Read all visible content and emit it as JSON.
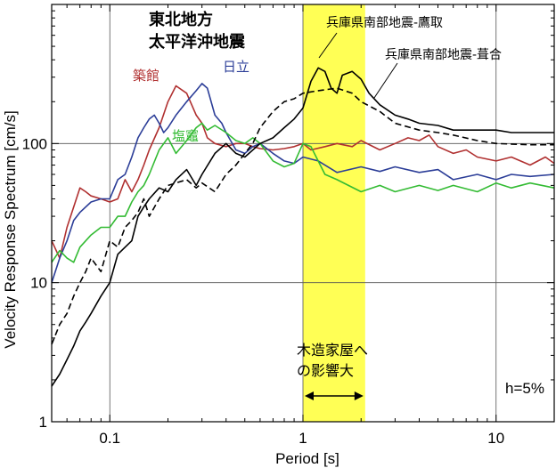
{
  "chart_data": {
    "type": "line",
    "xlabel": "Period [s]",
    "ylabel": "Velocity Response Spectrum [cm/s]",
    "xscale": "log",
    "yscale": "log",
    "xlim": [
      0.05,
      20
    ],
    "ylim": [
      1,
      1000
    ],
    "grid": true,
    "x_ticks": [
      {
        "value": 0.1,
        "label": "0.1"
      },
      {
        "value": 1,
        "label": "1"
      },
      {
        "value": 10,
        "label": "10"
      }
    ],
    "y_ticks": [
      {
        "value": 1,
        "label": "1"
      },
      {
        "value": 10,
        "label": "10"
      },
      {
        "value": 100,
        "label": "100"
      }
    ],
    "title_lines": [
      "東北地方",
      "太平洋沖地震"
    ],
    "damping_label": "h=5%",
    "highlight": {
      "x_range": [
        1,
        2.1
      ],
      "color": "#ffff55",
      "label_lines": [
        "木造家屋へ",
        "の影響大"
      ]
    },
    "series": [
      {
        "name": "築館",
        "color": "#b03030",
        "dash": "solid",
        "x": [
          0.05,
          0.055,
          0.06,
          0.065,
          0.07,
          0.075,
          0.08,
          0.09,
          0.1,
          0.11,
          0.12,
          0.13,
          0.14,
          0.15,
          0.16,
          0.18,
          0.2,
          0.22,
          0.25,
          0.28,
          0.3,
          0.32,
          0.35,
          0.4,
          0.45,
          0.5,
          0.55,
          0.6,
          0.7,
          0.8,
          0.9,
          1.0,
          1.1,
          1.3,
          1.5,
          1.8,
          2.0,
          2.5,
          3.0,
          3.5,
          4.0,
          4.5,
          5.0,
          6.0,
          7.0,
          8.0,
          10.0,
          12.0,
          15.0,
          18.0,
          20.0
        ],
        "y": [
          20,
          15,
          25,
          35,
          48,
          45,
          42,
          40,
          38,
          40,
          55,
          45,
          55,
          70,
          90,
          130,
          200,
          260,
          230,
          160,
          140,
          110,
          100,
          95,
          100,
          100,
          95,
          92,
          90,
          92,
          95,
          100,
          90,
          95,
          100,
          95,
          105,
          90,
          100,
          110,
          105,
          115,
          95,
          85,
          90,
          80,
          75,
          80,
          70,
          80,
          72
        ]
      },
      {
        "name": "日立",
        "color": "#2c3e98",
        "dash": "solid",
        "x": [
          0.05,
          0.055,
          0.06,
          0.065,
          0.07,
          0.08,
          0.09,
          0.1,
          0.11,
          0.12,
          0.13,
          0.14,
          0.15,
          0.16,
          0.17,
          0.18,
          0.19,
          0.2,
          0.22,
          0.25,
          0.28,
          0.3,
          0.32,
          0.35,
          0.38,
          0.4,
          0.45,
          0.5,
          0.55,
          0.6,
          0.7,
          0.8,
          0.9,
          1.0,
          1.2,
          1.5,
          2.0,
          2.5,
          3.0,
          4.0,
          5.0,
          6.0,
          8.0,
          10.0,
          12.0,
          15.0,
          20.0
        ],
        "y": [
          10,
          15,
          20,
          28,
          32,
          38,
          40,
          40,
          55,
          60,
          80,
          110,
          130,
          150,
          160,
          140,
          120,
          130,
          160,
          200,
          240,
          270,
          250,
          160,
          140,
          120,
          90,
          85,
          95,
          100,
          85,
          75,
          72,
          80,
          75,
          62,
          68,
          63,
          68,
          62,
          65,
          55,
          60,
          55,
          60,
          58,
          60
        ]
      },
      {
        "name": "塩竈",
        "color": "#33bb33",
        "dash": "solid",
        "x": [
          0.05,
          0.055,
          0.06,
          0.065,
          0.07,
          0.08,
          0.09,
          0.1,
          0.11,
          0.12,
          0.13,
          0.14,
          0.15,
          0.16,
          0.18,
          0.2,
          0.22,
          0.25,
          0.28,
          0.3,
          0.32,
          0.35,
          0.4,
          0.45,
          0.5,
          0.55,
          0.6,
          0.7,
          0.8,
          0.9,
          1.0,
          1.1,
          1.3,
          1.5,
          2.0,
          2.5,
          3.0,
          4.0,
          5.0,
          6.0,
          8.0,
          10.0,
          12.0,
          15.0,
          20.0
        ],
        "y": [
          14,
          17,
          15,
          14,
          18,
          22,
          25,
          25,
          30,
          30,
          38,
          45,
          50,
          60,
          90,
          110,
          85,
          105,
          130,
          140,
          125,
          135,
          120,
          105,
          100,
          110,
          100,
          75,
          68,
          72,
          100,
          95,
          60,
          55,
          45,
          50,
          45,
          50,
          46,
          50,
          45,
          52,
          48,
          52,
          48
        ]
      },
      {
        "name": "兵庫県南部地震-鷹取",
        "color": "#000000",
        "dash": "solid",
        "x": [
          0.05,
          0.055,
          0.06,
          0.065,
          0.07,
          0.075,
          0.08,
          0.09,
          0.1,
          0.11,
          0.12,
          0.13,
          0.14,
          0.15,
          0.16,
          0.18,
          0.2,
          0.22,
          0.25,
          0.28,
          0.3,
          0.35,
          0.4,
          0.45,
          0.5,
          0.6,
          0.7,
          0.8,
          0.9,
          1.0,
          1.1,
          1.2,
          1.3,
          1.4,
          1.5,
          1.6,
          1.8,
          2.0,
          2.2,
          2.5,
          3.0,
          3.5,
          4.0,
          5.0,
          6.0,
          8.0,
          10.0,
          12.0,
          15.0,
          20.0
        ],
        "y": [
          1.8,
          2.2,
          2.8,
          3.5,
          4.5,
          5.2,
          6,
          8,
          10,
          16,
          18,
          20,
          30,
          35,
          40,
          48,
          45,
          55,
          65,
          50,
          60,
          85,
          100,
          85,
          80,
          100,
          110,
          130,
          150,
          180,
          280,
          350,
          330,
          250,
          230,
          310,
          330,
          290,
          230,
          190,
          160,
          150,
          140,
          135,
          125,
          125,
          125,
          120,
          120,
          120
        ]
      },
      {
        "name": "兵庫県南部地震-葺合",
        "color": "#000000",
        "dash": "dashed",
        "x": [
          0.05,
          0.055,
          0.06,
          0.065,
          0.07,
          0.075,
          0.08,
          0.09,
          0.1,
          0.11,
          0.12,
          0.13,
          0.14,
          0.15,
          0.16,
          0.18,
          0.2,
          0.22,
          0.25,
          0.28,
          0.3,
          0.35,
          0.4,
          0.45,
          0.5,
          0.55,
          0.6,
          0.7,
          0.8,
          0.9,
          1.0,
          1.2,
          1.5,
          1.8,
          2.0,
          2.5,
          3.0,
          4.0,
          5.0,
          6.0,
          8.0,
          10.0,
          15.0,
          20.0
        ],
        "y": [
          3.6,
          5,
          6,
          8,
          10,
          12,
          15,
          12,
          20,
          18,
          25,
          28,
          32,
          40,
          30,
          40,
          50,
          52,
          55,
          48,
          52,
          45,
          60,
          70,
          85,
          100,
          130,
          170,
          200,
          210,
          230,
          240,
          250,
          230,
          200,
          170,
          140,
          125,
          120,
          115,
          105,
          100,
          98,
          98
        ]
      }
    ],
    "series_labels": [
      {
        "series": "築館",
        "text": "築館",
        "color": "#b03030"
      },
      {
        "series": "日立",
        "text": "日立",
        "color": "#2c3e98"
      },
      {
        "series": "塩竈",
        "text": "塩竈",
        "color": "#33bb33"
      },
      {
        "series": "兵庫県南部地震-鷹取",
        "text": "兵庫県南部地震-鷹取",
        "color": "#000000"
      },
      {
        "series": "兵庫県南部地震-葺合",
        "text": "兵庫県南部地震-葺合",
        "color": "#000000"
      }
    ]
  }
}
